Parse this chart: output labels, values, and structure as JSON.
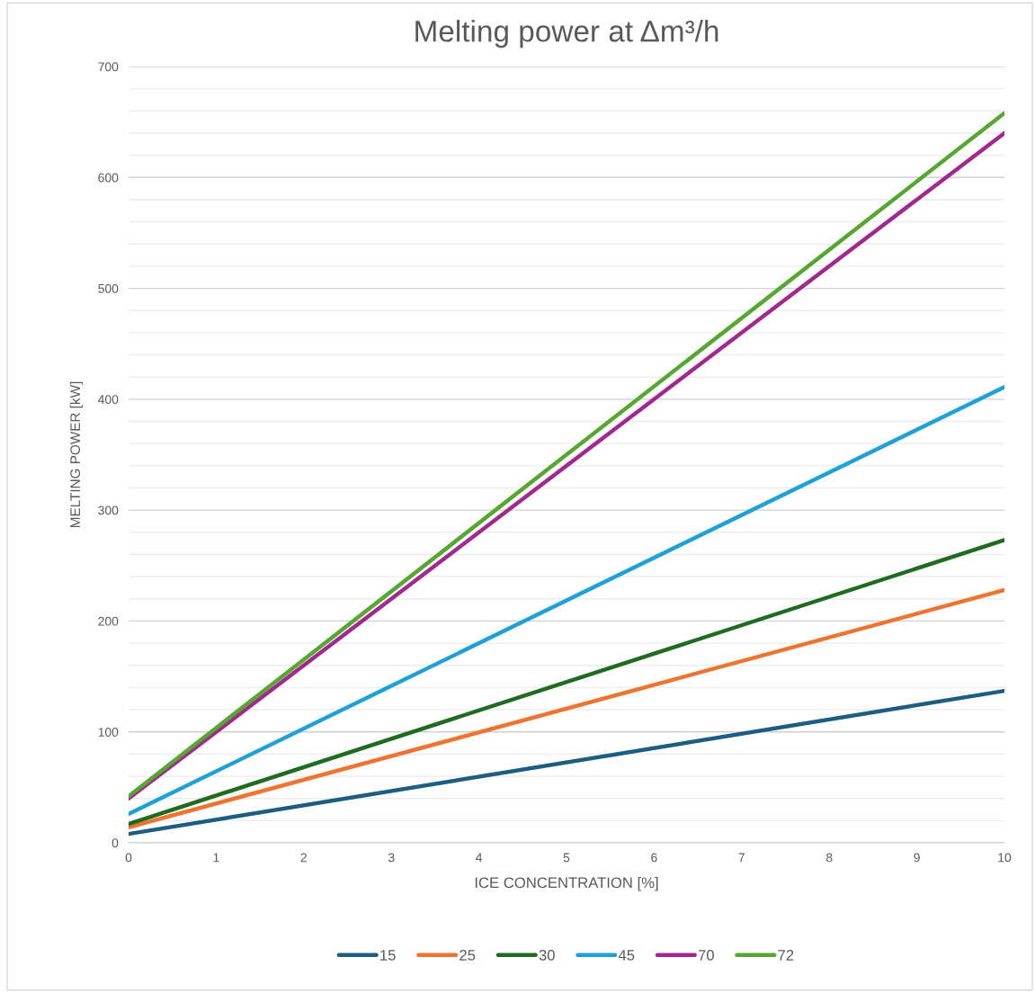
{
  "chart_data": {
    "type": "line",
    "title": "Melting power at Δm³/h",
    "xlabel": "ICE CONCENTRATION [%]",
    "ylabel": "MELTING POWER [kW]",
    "x": [
      0,
      10
    ],
    "series": [
      {
        "name": "15",
        "color": "#1b5e82",
        "values": [
          8,
          137
        ]
      },
      {
        "name": "25",
        "color": "#ee7430",
        "values": [
          14,
          228
        ]
      },
      {
        "name": "30",
        "color": "#1f6b20",
        "values": [
          17,
          273
        ]
      },
      {
        "name": "45",
        "color": "#1ea1d8",
        "values": [
          26,
          411
        ]
      },
      {
        "name": "70",
        "color": "#a2288f",
        "values": [
          40,
          640
        ]
      },
      {
        "name": "72",
        "color": "#56a72f",
        "values": [
          42,
          658
        ]
      }
    ],
    "xlim": [
      0,
      10
    ],
    "xticks": [
      0,
      1,
      2,
      3,
      4,
      5,
      6,
      7,
      8,
      9,
      10
    ],
    "ylim": [
      0,
      700
    ],
    "yticks": [
      0,
      {
        "value": 20,
        "label": null
      },
      {
        "value": 40,
        "label": null
      },
      {
        "value": 60,
        "label": null
      },
      {
        "value": 80,
        "label": null
      },
      100,
      {
        "value": 120,
        "label": null
      },
      {
        "value": 140,
        "label": null
      },
      {
        "value": 160,
        "label": null
      },
      {
        "value": 180,
        "label": null
      },
      200,
      {
        "value": 220,
        "label": null
      },
      {
        "value": 240,
        "label": null
      },
      {
        "value": 260,
        "label": null
      },
      {
        "value": 280,
        "label": null
      },
      300,
      {
        "value": 320,
        "label": null
      },
      {
        "value": 340,
        "label": null
      },
      {
        "value": 360,
        "label": null
      },
      {
        "value": 380,
        "label": null
      },
      400,
      {
        "value": 420,
        "label": null
      },
      {
        "value": 440,
        "label": null
      },
      {
        "value": 460,
        "label": null
      },
      {
        "value": 480,
        "label": null
      },
      500,
      {
        "value": 520,
        "label": null
      },
      {
        "value": 540,
        "label": null
      },
      {
        "value": 560,
        "label": null
      },
      {
        "value": 580,
        "label": null
      },
      600,
      {
        "value": 620,
        "label": null
      },
      {
        "value": 640,
        "label": null
      },
      {
        "value": 660,
        "label": null
      },
      {
        "value": 680,
        "label": null
      },
      700
    ],
    "grid": "y",
    "legend": "bottom",
    "marker": "none",
    "line_style": "solid"
  }
}
